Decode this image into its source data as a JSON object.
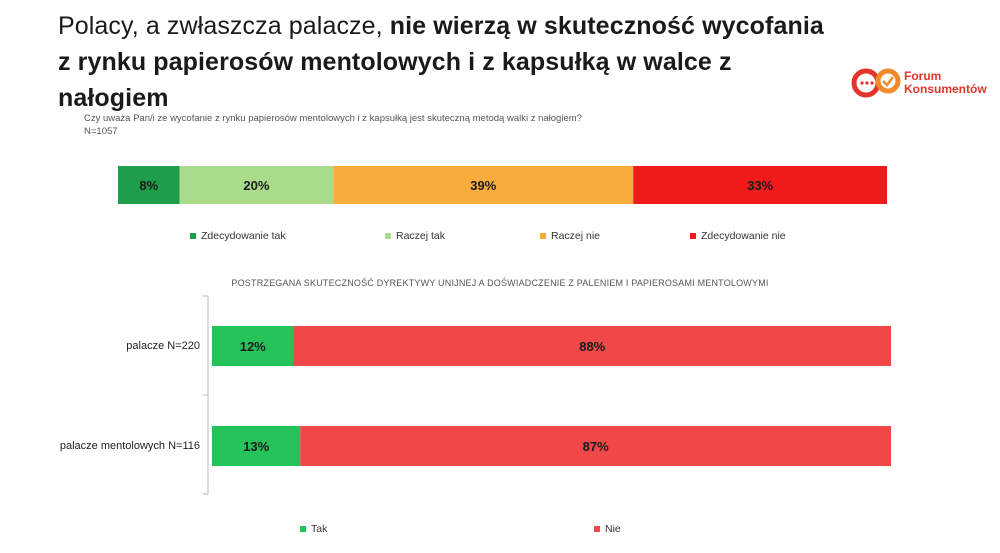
{
  "header": {
    "title_normal": "Polacy, a zwłaszcza palacze, ",
    "title_bold_1": "nie wierzą w skuteczność wycofania",
    "title_bold_2": "z rynku papierosów mentolowych i z kapsułką w walce z nałogiem"
  },
  "logo": {
    "line1": "Forum",
    "line2": "Konsumentów",
    "color": "#e3342b"
  },
  "question": {
    "text": "Czy uważa Pan/i ze wycofanie z rynku papierosów mentolowych i z kapsułką jest skuteczną metodą walki z nałogiem?",
    "n": "N=1057"
  },
  "chart_data": [
    {
      "type": "bar",
      "orientation": "horizontal-stacked-100",
      "categories": [
        "N=1057"
      ],
      "series": [
        {
          "name": "Zdecydowanie tak",
          "values": [
            8
          ],
          "label": "8%",
          "color": "#1e9e4a"
        },
        {
          "name": "Raczej tak",
          "values": [
            20
          ],
          "label": "20%",
          "color": "#a8dc8a"
        },
        {
          "name": "Raczej nie",
          "values": [
            39
          ],
          "label": "39%",
          "color": "#f8ac3c"
        },
        {
          "name": "Zdecydowanie nie",
          "values": [
            33
          ],
          "label": "33%",
          "color": "#f01c1c"
        }
      ],
      "legend": "bottom"
    },
    {
      "type": "bar",
      "orientation": "horizontal-stacked-100",
      "title": "POSTRZEGANA SKUTECZNOŚĆ DYREKTYWY UNIJNEJ A DOŚWIADCZENIE Z PALENIEM I PAPIEROSAMI MENTOLOWYMI",
      "categories": [
        "palacze N=220",
        "palacze mentolowych N=116"
      ],
      "series": [
        {
          "name": "Tak",
          "values": [
            12,
            13
          ],
          "labels": [
            "12%",
            "13%"
          ],
          "color": "#26c35a"
        },
        {
          "name": "Nie",
          "values": [
            88,
            87
          ],
          "labels": [
            "88%",
            "87%"
          ],
          "color": "#f04848"
        }
      ],
      "legend": "bottom"
    }
  ]
}
